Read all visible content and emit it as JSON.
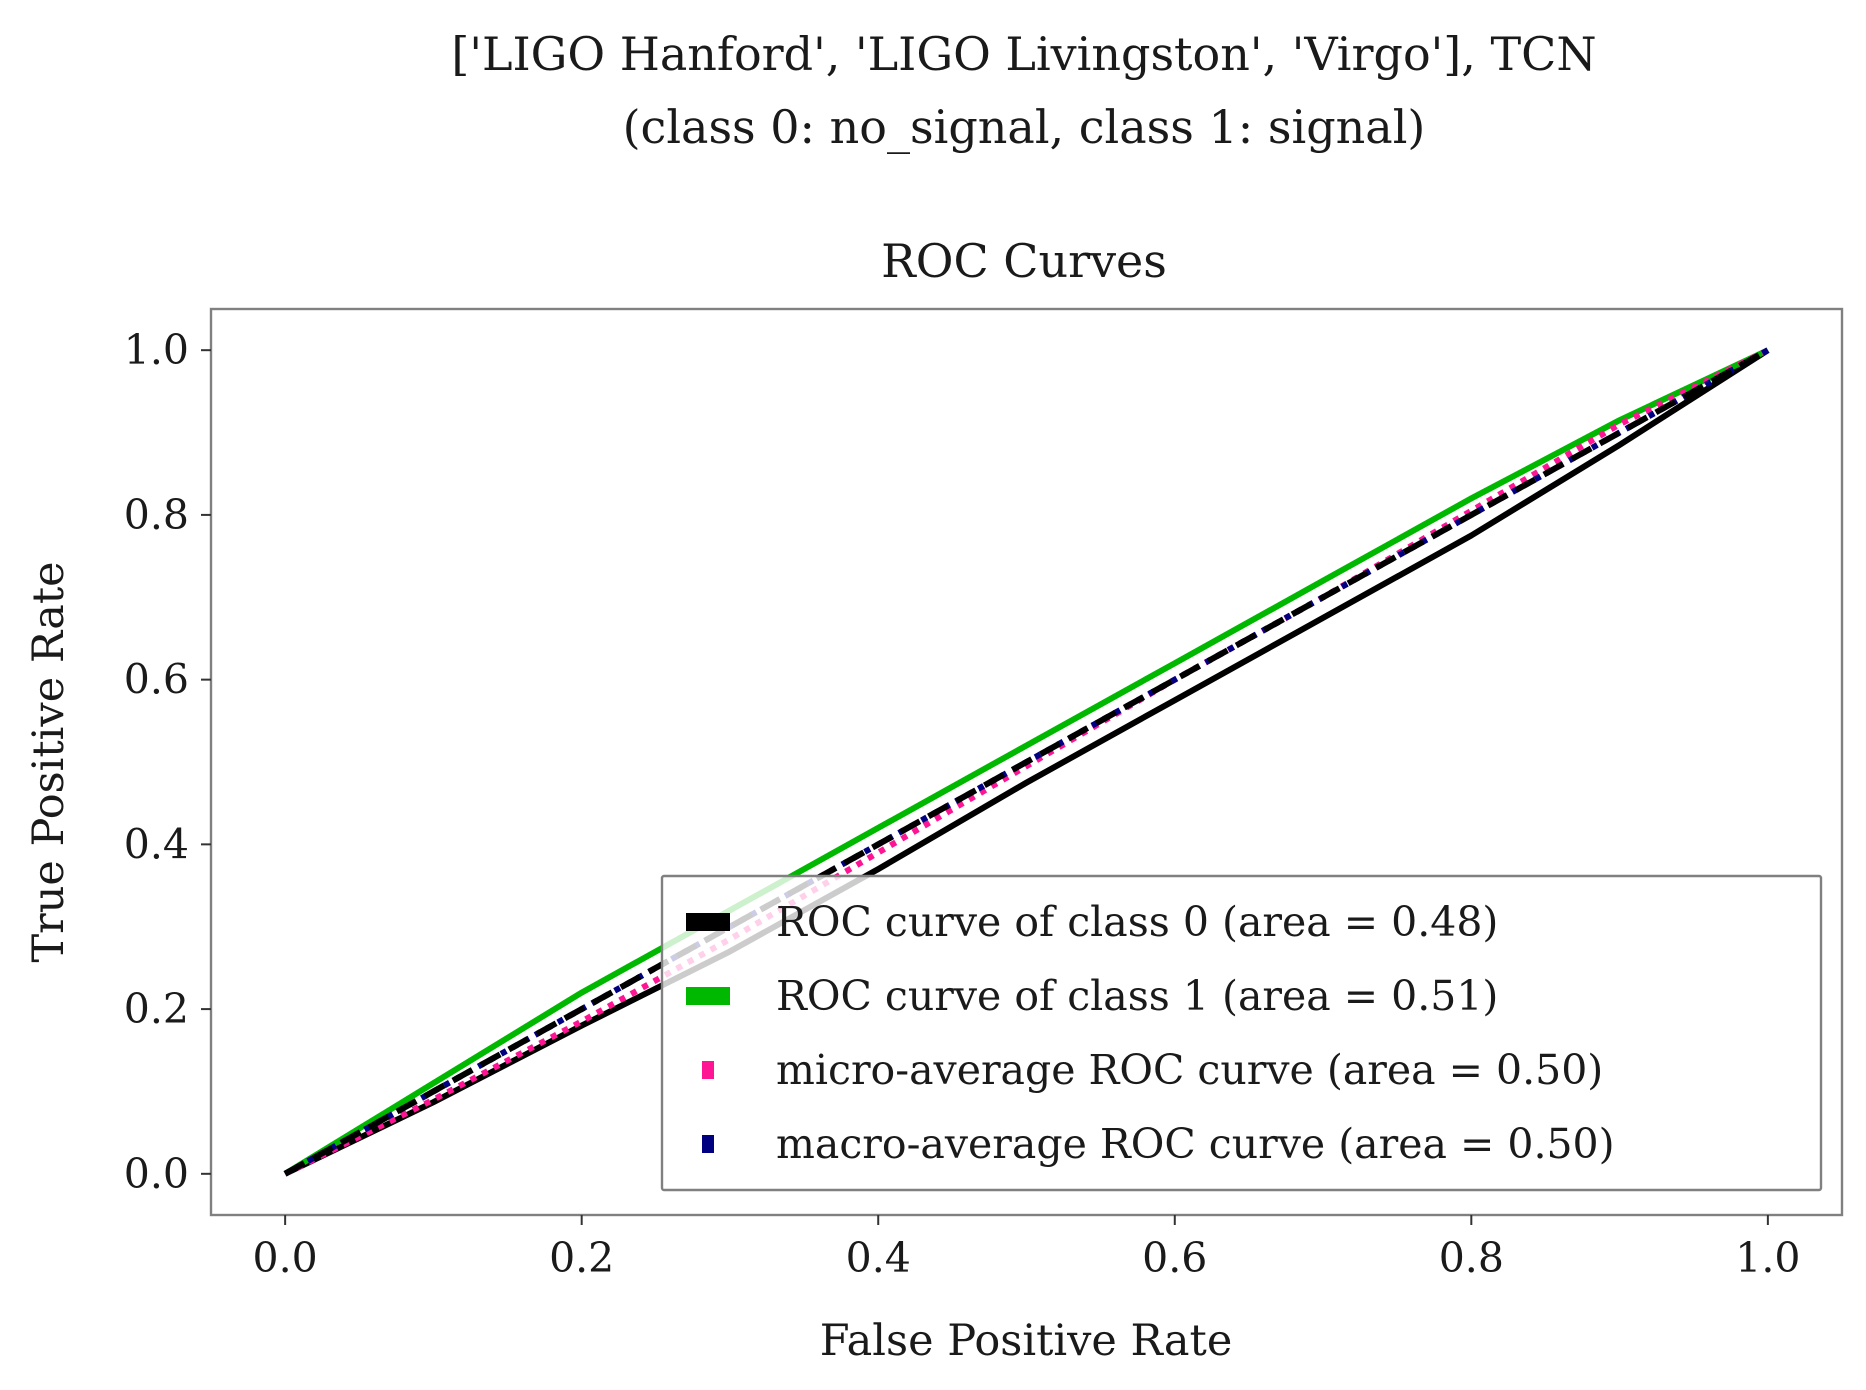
{
  "chart_data": {
    "type": "line",
    "suptitle_lines": [
      "['LIGO Hanford', 'LIGO Livingston', 'Virgo'], TCN",
      "(class 0: no_signal, class 1: signal)"
    ],
    "title": "ROC Curves",
    "xlabel": "False Positive Rate",
    "ylabel": "True Positive Rate",
    "xlim": [
      -0.05,
      1.05
    ],
    "ylim": [
      -0.05,
      1.05
    ],
    "xticks": [
      "0.0",
      "0.2",
      "0.4",
      "0.6",
      "0.8",
      "1.0"
    ],
    "yticks": [
      "0.0",
      "0.2",
      "0.4",
      "0.6",
      "0.8",
      "1.0"
    ],
    "grid": false,
    "legend_position": "lower-right",
    "series": [
      {
        "name": "ROC curve of class 0 (area = 0.48)",
        "color": "#000000",
        "style": "solid",
        "x": [
          0.0,
          0.1,
          0.2,
          0.3,
          0.4,
          0.5,
          0.6,
          0.7,
          0.8,
          0.9,
          1.0
        ],
        "y": [
          0.0,
          0.087,
          0.18,
          0.27,
          0.37,
          0.475,
          0.575,
          0.675,
          0.775,
          0.885,
          1.0
        ]
      },
      {
        "name": "ROC curve of class 1 (area = 0.51)",
        "color": "#00b800",
        "style": "solid",
        "x": [
          0.0,
          0.1,
          0.2,
          0.3,
          0.4,
          0.5,
          0.6,
          0.7,
          0.8,
          0.9,
          1.0
        ],
        "y": [
          0.0,
          0.11,
          0.22,
          0.32,
          0.42,
          0.52,
          0.62,
          0.72,
          0.82,
          0.915,
          1.0
        ]
      },
      {
        "name": "micro-average ROC curve (area = 0.50)",
        "color": "#ff1493",
        "style": "dotted",
        "x": [
          0.0,
          0.1,
          0.2,
          0.3,
          0.4,
          0.5,
          0.6,
          0.7,
          0.8,
          0.9,
          1.0
        ],
        "y": [
          0.0,
          0.09,
          0.185,
          0.285,
          0.39,
          0.495,
          0.6,
          0.7,
          0.805,
          0.91,
          1.0
        ]
      },
      {
        "name": "macro-average ROC curve (area = 0.50)",
        "color": "#000080",
        "style": "dotted",
        "x": [
          0.0,
          0.1,
          0.2,
          0.3,
          0.4,
          0.5,
          0.6,
          0.7,
          0.8,
          0.9,
          1.0
        ],
        "y": [
          0.0,
          0.1,
          0.2,
          0.3,
          0.4,
          0.5,
          0.6,
          0.7,
          0.8,
          0.9,
          1.0
        ]
      }
    ],
    "chance_line": {
      "color": "#000000",
      "style": "dashed",
      "x": [
        0.0,
        1.0
      ],
      "y": [
        0.0,
        1.0
      ]
    }
  }
}
